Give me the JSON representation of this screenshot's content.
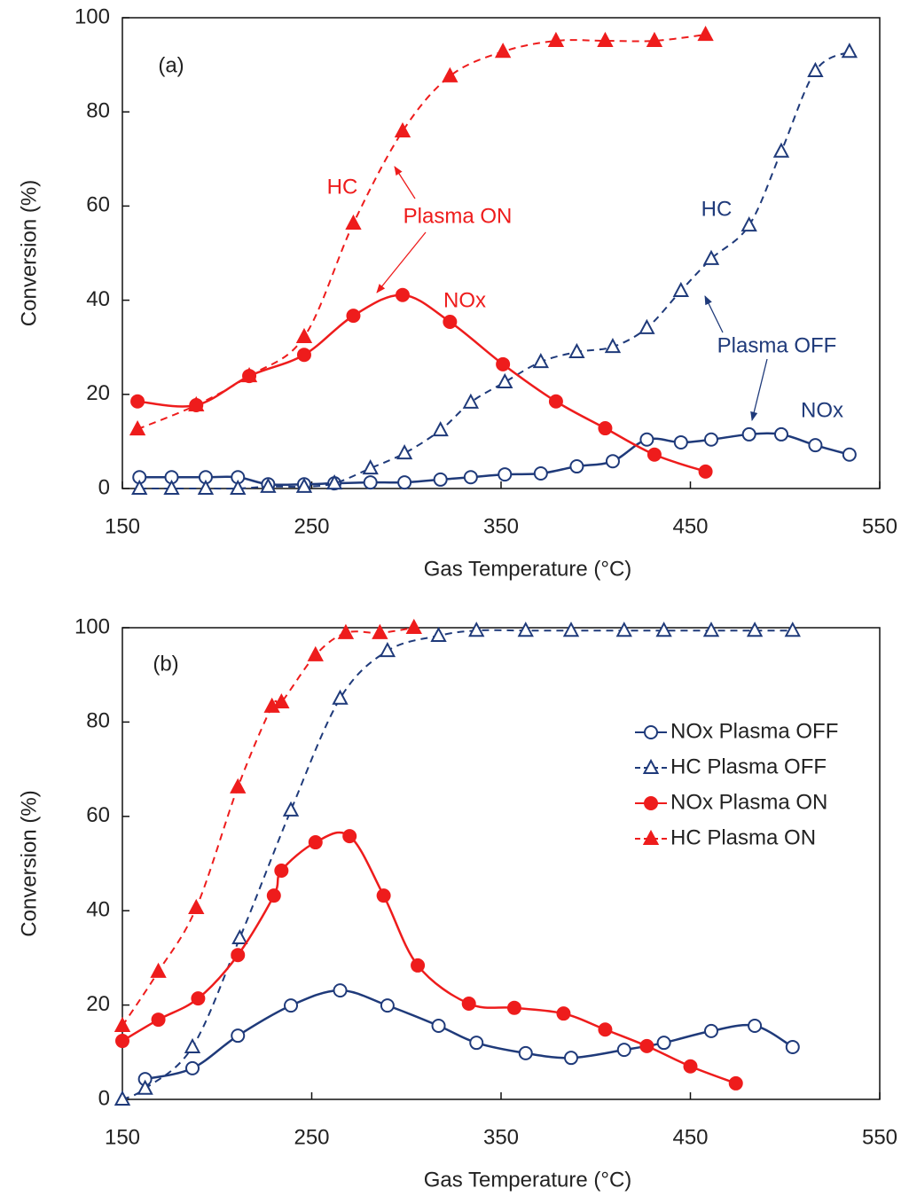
{
  "chart_data": [
    {
      "type": "line",
      "label": "(a)",
      "x_label": "Gas Temperature (°C)",
      "y_label": "Conversion (%)",
      "xlim": [
        150,
        550
      ],
      "xticks": [
        150,
        250,
        350,
        450,
        550
      ],
      "ylim": [
        0,
        100
      ],
      "yticks": [
        0,
        20,
        40,
        60,
        80,
        100
      ],
      "legend": false,
      "annotations": [
        {
          "text": "HC",
          "color": "#ee1c1c"
        },
        {
          "text": "Plasma ON",
          "color": "#ee1c1c"
        },
        {
          "text": "NOx",
          "color": "#ee1c1c"
        },
        {
          "text": "HC",
          "color": "#1f3a7a"
        },
        {
          "text": "Plasma OFF",
          "color": "#1f3a7a"
        },
        {
          "text": "NOx",
          "color": "#1f3a7a"
        }
      ],
      "series": [
        {
          "color": "#1f3a7a",
          "marker": "circle",
          "filled": false,
          "dashed": false,
          "x": [
            159,
            176,
            194,
            211,
            227,
            246,
            262,
            281,
            299,
            318,
            334,
            352,
            371,
            390,
            409,
            427,
            445,
            461,
            481,
            498,
            516,
            534
          ],
          "values": [
            2.4,
            2.4,
            2.4,
            2.4,
            0.9,
            0.9,
            1.1,
            1.3,
            1.3,
            1.9,
            2.4,
            3,
            3.2,
            4.7,
            5.8,
            10.4,
            9.8,
            10.4,
            11.5,
            11.5,
            9.2,
            7.2
          ]
        },
        {
          "color": "#1f3a7a",
          "marker": "triangle",
          "filled": false,
          "dashed": true,
          "x": [
            159,
            176,
            194,
            211,
            227,
            246,
            262,
            281,
            299,
            318,
            334,
            352,
            371,
            390,
            409,
            427,
            445,
            461,
            481,
            498,
            516,
            534
          ],
          "values": [
            0,
            0,
            0,
            0,
            0.4,
            0.4,
            1.1,
            4.3,
            7.5,
            12.4,
            18.3,
            22.6,
            26.9,
            29,
            30.1,
            34.1,
            42,
            48.8,
            55.9,
            71.6,
            88.7,
            92.8
          ]
        },
        {
          "color": "#ee1c1c",
          "marker": "circle",
          "filled": true,
          "dashed": false,
          "x": [
            158,
            189,
            217,
            246,
            272,
            298,
            323,
            351,
            379,
            405,
            431,
            458
          ],
          "values": [
            18.5,
            17.7,
            23.9,
            28.4,
            36.7,
            41.1,
            35.4,
            26.4,
            18.5,
            12.8,
            7.2,
            3.6
          ]
        },
        {
          "color": "#ee1c1c",
          "marker": "triangle",
          "filled": true,
          "dashed": true,
          "x": [
            158,
            189,
            217,
            246,
            272,
            298,
            323,
            351,
            379,
            405,
            431,
            458
          ],
          "values": [
            12.6,
            17.7,
            23.9,
            32.2,
            56.3,
            75.9,
            87.6,
            92.8,
            95.1,
            95.1,
            95.1,
            96.4
          ]
        }
      ]
    },
    {
      "type": "line",
      "label": "(b)",
      "x_label": "Gas Temperature (°C)",
      "y_label": "Conversion (%)",
      "xlim": [
        150,
        550
      ],
      "xticks": [
        150,
        250,
        350,
        450,
        550
      ],
      "ylim": [
        0,
        100
      ],
      "yticks": [
        0,
        20,
        40,
        60,
        80,
        100
      ],
      "legend": true,
      "series": [
        {
          "name": "NOx Plasma OFF",
          "color": "#1f3a7a",
          "marker": "circle",
          "filled": false,
          "dashed": false,
          "x": [
            162,
            187,
            211,
            239,
            265,
            290,
            317,
            337,
            363,
            387,
            415,
            436,
            461,
            484,
            504
          ],
          "values": [
            4.3,
            6.6,
            13.5,
            19.9,
            23.1,
            19.9,
            15.6,
            12,
            9.8,
            8.8,
            10.5,
            12,
            14.5,
            15.6,
            11.1
          ]
        },
        {
          "name": "HC Plasma OFF",
          "color": "#1f3a7a",
          "marker": "triangle",
          "filled": false,
          "dashed": true,
          "x": [
            150,
            162,
            187,
            212,
            239,
            265,
            290,
            317,
            337,
            363,
            387,
            415,
            436,
            461,
            484,
            504
          ],
          "values": [
            0,
            2.3,
            11.1,
            34.2,
            61.3,
            85,
            95.1,
            98.3,
            99.4,
            99.4,
            99.4,
            99.4,
            99.4,
            99.4,
            99.4,
            99.4
          ]
        },
        {
          "name": "NOx Plasma ON",
          "color": "#ee1c1c",
          "marker": "circle",
          "filled": true,
          "dashed": false,
          "x": [
            150,
            169,
            190,
            211,
            230,
            234,
            252,
            270,
            288,
            306,
            333,
            357,
            383,
            405,
            427,
            450,
            474
          ],
          "values": [
            12.4,
            16.9,
            21.4,
            30.6,
            43.2,
            48.5,
            54.5,
            55.8,
            43.2,
            28.4,
            20.3,
            19.4,
            18.2,
            14.8,
            11.3,
            7,
            3.4
          ]
        },
        {
          "name": "HC Plasma ON",
          "color": "#ee1c1c",
          "marker": "triangle",
          "filled": true,
          "dashed": true,
          "x": [
            150,
            169,
            189,
            211,
            229,
            234,
            252,
            268,
            286,
            304
          ],
          "values": [
            15.6,
            27.1,
            40.6,
            66.2,
            83.3,
            84.2,
            94.2,
            98.9,
            98.9,
            100
          ]
        }
      ]
    }
  ]
}
